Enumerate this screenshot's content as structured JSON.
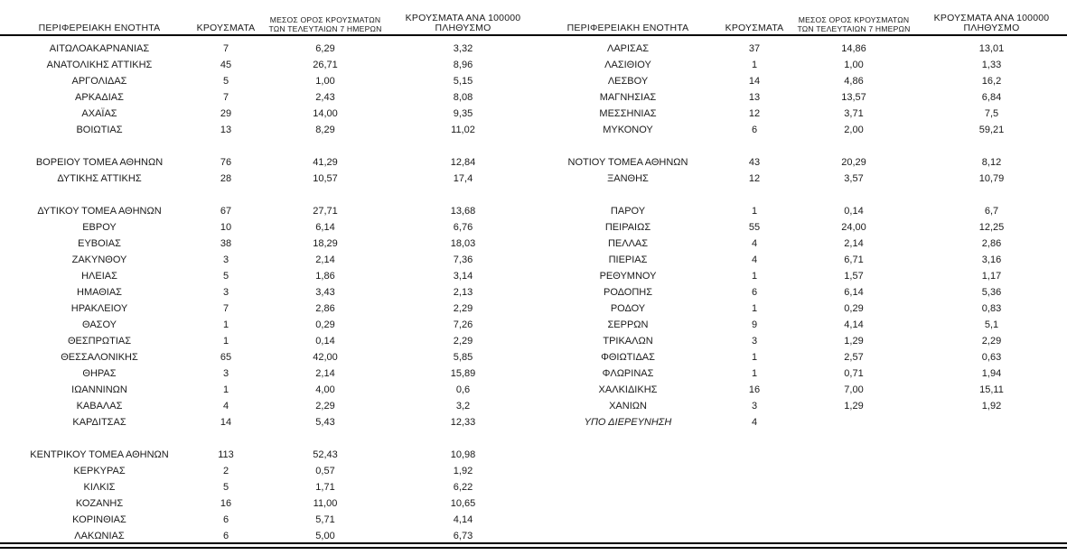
{
  "columns": {
    "region": "ΠΕΡΙΦΕΡΕΙΑΚΗ ΕΝΟΤΗΤΑ",
    "cases": "ΚΡΟΥΣΜΑΤΑ",
    "avg7_line1": "ΜΕΣΟΣ ΟΡΟΣ ΚΡΟΥΣΜΑΤΩΝ",
    "avg7_line2": "ΤΩΝ ΤΕΛΕΥΤΑΙΩΝ 7 ΗΜΕΡΩΝ",
    "per100k_line1": "ΚΡΟΥΣΜΑΤΑ ΑΝΑ 100000",
    "per100k_line2": "ΠΛΗΘΥΣΜΟ"
  },
  "left_table": {
    "rows": [
      {
        "region": "ΑΙΤΩΛΟΑΚΑΡΝΑΝΙΑΣ",
        "cases": "7",
        "avg7": "6,29",
        "per100k": "3,32"
      },
      {
        "region": "ΑΝΑΤΟΛΙΚΗΣ ΑΤΤΙΚΗΣ",
        "cases": "45",
        "avg7": "26,71",
        "per100k": "8,96"
      },
      {
        "region": "ΑΡΓΟΛΙΔΑΣ",
        "cases": "5",
        "avg7": "1,00",
        "per100k": "5,15"
      },
      {
        "region": "ΑΡΚΑΔΙΑΣ",
        "cases": "7",
        "avg7": "2,43",
        "per100k": "8,08"
      },
      {
        "region": "ΑΧΑΪΑΣ",
        "cases": "29",
        "avg7": "14,00",
        "per100k": "9,35"
      },
      {
        "region": "ΒΟΙΩΤΙΑΣ",
        "cases": "13",
        "avg7": "8,29",
        "per100k": "11,02"
      },
      {
        "region": "",
        "cases": "",
        "avg7": "",
        "per100k": ""
      },
      {
        "region": "ΒΟΡΕΙΟΥ ΤΟΜΕΑ ΑΘΗΝΩΝ",
        "cases": "76",
        "avg7": "41,29",
        "per100k": "12,84"
      },
      {
        "region": "ΔΥΤΙΚΗΣ ΑΤΤΙΚΗΣ",
        "cases": "28",
        "avg7": "10,57",
        "per100k": "17,4"
      },
      {
        "region": "",
        "cases": "",
        "avg7": "",
        "per100k": ""
      },
      {
        "region": "ΔΥΤΙΚΟΥ ΤΟΜΕΑ ΑΘΗΝΩΝ",
        "cases": "67",
        "avg7": "27,71",
        "per100k": "13,68"
      },
      {
        "region": "ΕΒΡΟΥ",
        "cases": "10",
        "avg7": "6,14",
        "per100k": "6,76"
      },
      {
        "region": "ΕΥΒΟΙΑΣ",
        "cases": "38",
        "avg7": "18,29",
        "per100k": "18,03"
      },
      {
        "region": "ΖΑΚΥΝΘΟΥ",
        "cases": "3",
        "avg7": "2,14",
        "per100k": "7,36"
      },
      {
        "region": "ΗΛΕΙΑΣ",
        "cases": "5",
        "avg7": "1,86",
        "per100k": "3,14"
      },
      {
        "region": "ΗΜΑΘΙΑΣ",
        "cases": "3",
        "avg7": "3,43",
        "per100k": "2,13"
      },
      {
        "region": "ΗΡΑΚΛΕΙΟΥ",
        "cases": "7",
        "avg7": "2,86",
        "per100k": "2,29"
      },
      {
        "region": "ΘΑΣΟΥ",
        "cases": "1",
        "avg7": "0,29",
        "per100k": "7,26"
      },
      {
        "region": "ΘΕΣΠΡΩΤΙΑΣ",
        "cases": "1",
        "avg7": "0,14",
        "per100k": "2,29"
      },
      {
        "region": "ΘΕΣΣΑΛΟΝΙΚΗΣ",
        "cases": "65",
        "avg7": "42,00",
        "per100k": "5,85"
      },
      {
        "region": "ΘΗΡΑΣ",
        "cases": "3",
        "avg7": "2,14",
        "per100k": "15,89"
      },
      {
        "region": "ΙΩΑΝΝΙΝΩΝ",
        "cases": "1",
        "avg7": "4,00",
        "per100k": "0,6"
      },
      {
        "region": "ΚΑΒΑΛΑΣ",
        "cases": "4",
        "avg7": "2,29",
        "per100k": "3,2"
      },
      {
        "region": "ΚΑΡΔΙΤΣΑΣ",
        "cases": "14",
        "avg7": "5,43",
        "per100k": "12,33"
      },
      {
        "region": "",
        "cases": "",
        "avg7": "",
        "per100k": ""
      },
      {
        "region": "ΚΕΝΤΡΙΚΟΥ ΤΟΜΕΑ ΑΘΗΝΩΝ",
        "cases": "113",
        "avg7": "52,43",
        "per100k": "10,98"
      },
      {
        "region": "ΚΕΡΚΥΡΑΣ",
        "cases": "2",
        "avg7": "0,57",
        "per100k": "1,92"
      },
      {
        "region": "ΚΙΛΚΙΣ",
        "cases": "5",
        "avg7": "1,71",
        "per100k": "6,22"
      },
      {
        "region": "ΚΟΖΑΝΗΣ",
        "cases": "16",
        "avg7": "11,00",
        "per100k": "10,65"
      },
      {
        "region": "ΚΟΡΙΝΘΙΑΣ",
        "cases": "6",
        "avg7": "5,71",
        "per100k": "4,14"
      },
      {
        "region": "ΛΑΚΩΝΙΑΣ",
        "cases": "6",
        "avg7": "5,00",
        "per100k": "6,73"
      }
    ]
  },
  "right_table": {
    "rows": [
      {
        "region": "ΛΑΡΙΣΑΣ",
        "cases": "37",
        "avg7": "14,86",
        "per100k": "13,01"
      },
      {
        "region": "ΛΑΣΙΘΙΟΥ",
        "cases": "1",
        "avg7": "1,00",
        "per100k": "1,33"
      },
      {
        "region": "ΛΕΣΒΟΥ",
        "cases": "14",
        "avg7": "4,86",
        "per100k": "16,2"
      },
      {
        "region": "ΜΑΓΝΗΣΙΑΣ",
        "cases": "13",
        "avg7": "13,57",
        "per100k": "6,84"
      },
      {
        "region": "ΜΕΣΣΗΝΙΑΣ",
        "cases": "12",
        "avg7": "3,71",
        "per100k": "7,5"
      },
      {
        "region": "ΜΥΚΟΝΟΥ",
        "cases": "6",
        "avg7": "2,00",
        "per100k": "59,21"
      },
      {
        "region": "",
        "cases": "",
        "avg7": "",
        "per100k": ""
      },
      {
        "region": "ΝΟΤΙΟΥ ΤΟΜΕΑ ΑΘΗΝΩΝ",
        "cases": "43",
        "avg7": "20,29",
        "per100k": "8,12"
      },
      {
        "region": "ΞΑΝΘΗΣ",
        "cases": "12",
        "avg7": "3,57",
        "per100k": "10,79"
      },
      {
        "region": "",
        "cases": "",
        "avg7": "",
        "per100k": ""
      },
      {
        "region": "ΠΑΡΟΥ",
        "cases": "1",
        "avg7": "0,14",
        "per100k": "6,7"
      },
      {
        "region": "ΠΕΙΡΑΙΩΣ",
        "cases": "55",
        "avg7": "24,00",
        "per100k": "12,25"
      },
      {
        "region": "ΠΕΛΛΑΣ",
        "cases": "4",
        "avg7": "2,14",
        "per100k": "2,86"
      },
      {
        "region": "ΠΙΕΡΙΑΣ",
        "cases": "4",
        "avg7": "6,71",
        "per100k": "3,16"
      },
      {
        "region": "ΡΕΘΥΜΝΟΥ",
        "cases": "1",
        "avg7": "1,57",
        "per100k": "1,17"
      },
      {
        "region": "ΡΟΔΟΠΗΣ",
        "cases": "6",
        "avg7": "6,14",
        "per100k": "5,36"
      },
      {
        "region": "ΡΟΔΟΥ",
        "cases": "1",
        "avg7": "0,29",
        "per100k": "0,83"
      },
      {
        "region": "ΣΕΡΡΩΝ",
        "cases": "9",
        "avg7": "4,14",
        "per100k": "5,1"
      },
      {
        "region": "ΤΡΙΚΑΛΩΝ",
        "cases": "3",
        "avg7": "1,29",
        "per100k": "2,29"
      },
      {
        "region": "ΦΘΙΩΤΙΔΑΣ",
        "cases": "1",
        "avg7": "2,57",
        "per100k": "0,63"
      },
      {
        "region": "ΦΛΩΡΙΝΑΣ",
        "cases": "1",
        "avg7": "0,71",
        "per100k": "1,94"
      },
      {
        "region": "ΧΑΛΚΙΔΙΚΗΣ",
        "cases": "16",
        "avg7": "7,00",
        "per100k": "15,11"
      },
      {
        "region": "ΧΑΝΙΩΝ",
        "cases": "3",
        "avg7": "1,29",
        "per100k": "1,92"
      },
      {
        "region": "ΥΠΟ ΔΙΕΡΕΥΝΗΣΗ",
        "cases": "4",
        "avg7": "",
        "per100k": "",
        "italic": true
      }
    ]
  }
}
